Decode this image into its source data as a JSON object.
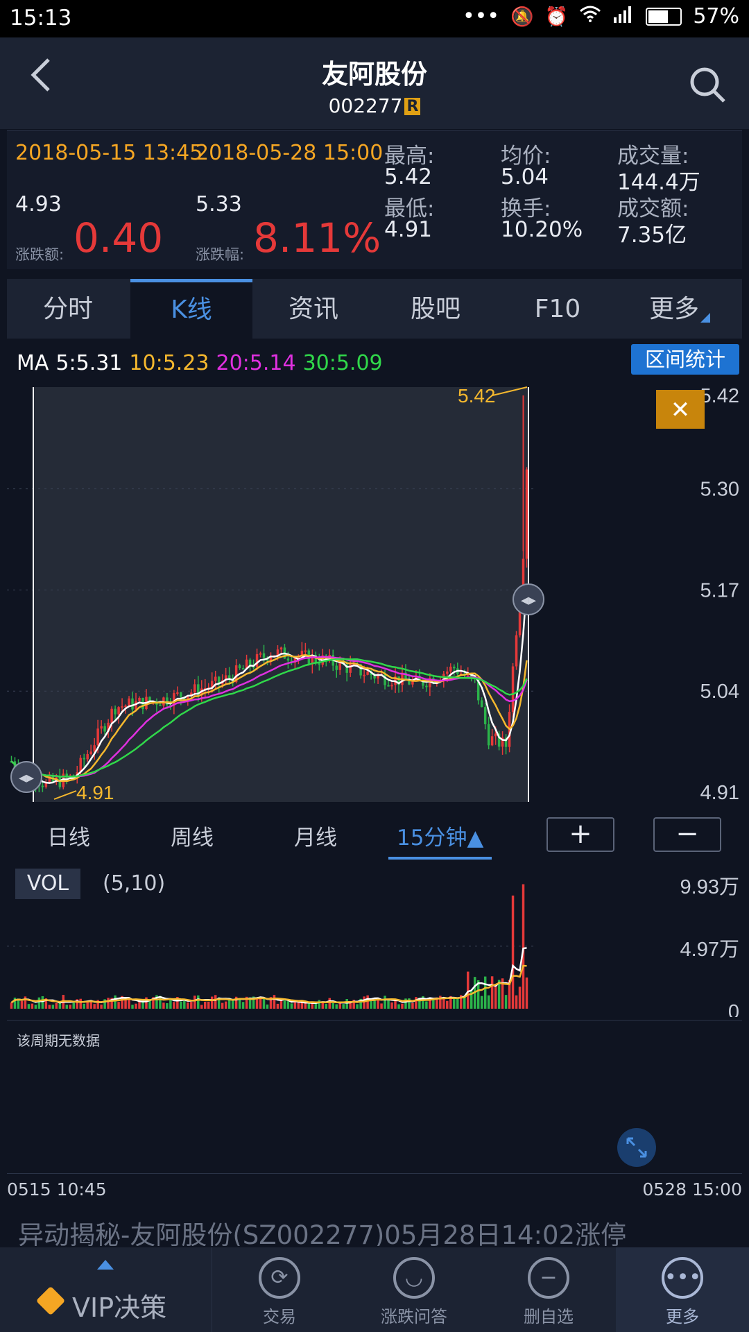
{
  "status_bar": {
    "time": "15:13",
    "dots": "•••",
    "battery": "57%"
  },
  "header": {
    "title": "友阿股份",
    "code": "002277",
    "badge": "R"
  },
  "summary": {
    "start_dt": "2018-05-15 13:45",
    "end_dt": "2018-05-28 15:00",
    "start_price": "4.93",
    "end_price": "5.33",
    "change_label": "涨跌额:",
    "change_value": "0.40",
    "change_pct_label": "涨跌幅:",
    "change_pct_value": "8.11%",
    "stats": [
      {
        "label": "最高:",
        "value": "5.42"
      },
      {
        "label": "均价:",
        "value": "5.04"
      },
      {
        "label": "成交量:",
        "value": "144.4万"
      },
      {
        "label": "最低:",
        "value": "4.91"
      },
      {
        "label": "换手:",
        "value": "10.20%"
      },
      {
        "label": "成交额:",
        "value": "7.35亿"
      }
    ]
  },
  "tabs": [
    {
      "label": "分时"
    },
    {
      "label": "K线",
      "active": true
    },
    {
      "label": "资讯"
    },
    {
      "label": "股吧"
    },
    {
      "label": "F10"
    },
    {
      "label": "更多"
    }
  ],
  "ma": {
    "prefix": "MA",
    "ma5": "5:5.31",
    "ma10": "10:5.23",
    "ma20": "20:5.14",
    "ma30": "30:5.09",
    "colors": {
      "ma5": "#ffffff",
      "ma10": "#f5b82e",
      "ma20": "#e030e0",
      "ma30": "#30d84a"
    }
  },
  "range_stats_button": "区间统计",
  "close_button": "✕",
  "price_axis": [
    "5.42",
    "5.30",
    "5.17",
    "5.04",
    "4.91"
  ],
  "price_annotations": {
    "high": "5.42",
    "low": "4.91"
  },
  "periods": [
    {
      "label": "日线"
    },
    {
      "label": "周线"
    },
    {
      "label": "月线"
    },
    {
      "label": "15分钟▲",
      "active": true
    }
  ],
  "zoom": {
    "plus": "+",
    "minus": "−"
  },
  "volume": {
    "tag": "VOL",
    "params": "(5,10)",
    "axis": [
      "9.93万",
      "4.97万",
      "0"
    ]
  },
  "no_data": "该周期无数据",
  "time_axis": {
    "start": "0515 10:45",
    "end": "0528 15:00"
  },
  "news": "异动揭秘-友阿股份(SZ002277)05月28日14:02涨停",
  "nav": {
    "vip": "VIP决策",
    "trade": "交易",
    "qa": "涨跌问答",
    "remove": "删自选",
    "more": "更多"
  },
  "chart_data": {
    "type": "candlestick",
    "xlabel": "",
    "ylabel": "",
    "ylim": [
      4.91,
      5.42
    ],
    "x_range": [
      "0515 10:45",
      "0528 15:00"
    ],
    "high": 5.42,
    "low": 4.91,
    "open": 4.93,
    "close": 5.33,
    "ma_last": {
      "ma5": 5.31,
      "ma10": 5.23,
      "ma20": 5.14,
      "ma30": 5.09
    },
    "volume_ylim": [
      0,
      9.93
    ],
    "volume_unit": "万"
  }
}
